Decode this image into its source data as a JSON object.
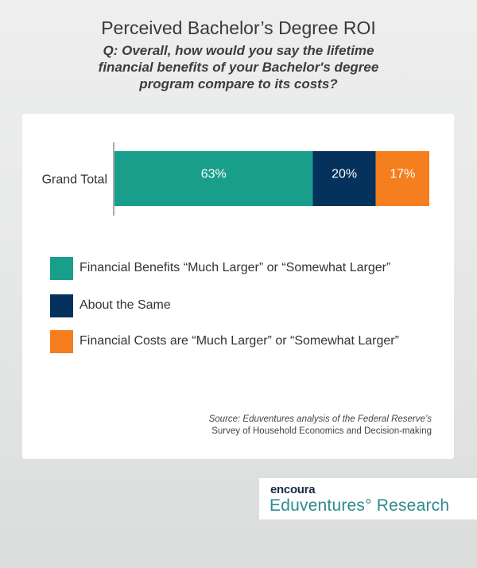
{
  "header": {
    "title": "Perceived Bachelor’s Degree ROI",
    "question": "Q: Overall, how would you say the lifetime financial benefits of your Bachelor's degree program compare to its costs?"
  },
  "chart_data": {
    "type": "bar",
    "orientation": "horizontal",
    "stacked": true,
    "categories": [
      "Grand Total"
    ],
    "series": [
      {
        "name": "Financial Benefits “Much Larger” or “Somewhat Larger”",
        "values": [
          63
        ],
        "label": "63%",
        "color": "#1a9e8c"
      },
      {
        "name": "About the Same",
        "values": [
          20
        ],
        "label": "20%",
        "color": "#05325c"
      },
      {
        "name": "Financial Costs are “Much Larger” or “Somewhat Larger”",
        "values": [
          17
        ],
        "label": "17%",
        "color": "#f57e1e"
      }
    ],
    "xlim": [
      0,
      100
    ],
    "grid": false,
    "legend_position": "bottom"
  },
  "source": {
    "line1": "Source: Eduventures analysis of the Federal Reserve’s",
    "line2": "Survey of Household Economics and Decision-making"
  },
  "logo": {
    "brand": "encoura",
    "name": "Eduventures° Research"
  }
}
